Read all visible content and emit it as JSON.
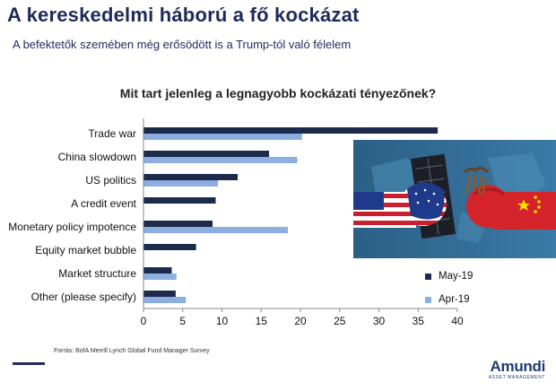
{
  "slide": {
    "title": "A kereskedelmi háború a fő kockázat",
    "subtitle": "A befektetők szemében még erősödött is a Trump-tól való félelem"
  },
  "chart_data": {
    "type": "bar",
    "orientation": "horizontal",
    "title": "Mit tart jelenleg a legnagyobb kockázati tényezőnek?",
    "categories": [
      "Trade war",
      "China slowdown",
      "US politics",
      "A credit event",
      "Monetary policy impotence",
      "Equity market bubble",
      "Market structure",
      "Other (please specify)"
    ],
    "series": [
      {
        "name": "May-19",
        "color": "#1c2a4c",
        "values": [
          37.5,
          16,
          12,
          9.2,
          8.8,
          6.7,
          3.6,
          4.1
        ]
      },
      {
        "name": "Apr-19",
        "color": "#8caee0",
        "values": [
          20.2,
          19.6,
          9.5,
          null,
          18.4,
          null,
          4.2,
          5.4
        ]
      }
    ],
    "xlim": [
      0,
      40
    ],
    "xticks": [
      0,
      5,
      10,
      15,
      20,
      25,
      30,
      35,
      40
    ],
    "legend": "bottom-right",
    "grid": false
  },
  "footer": {
    "source": "Forrás: BofA Merrill Lynch Global Fund Manager Survey",
    "logo": "Amundi",
    "logo_sub": "ASSET MANAGEMENT"
  }
}
